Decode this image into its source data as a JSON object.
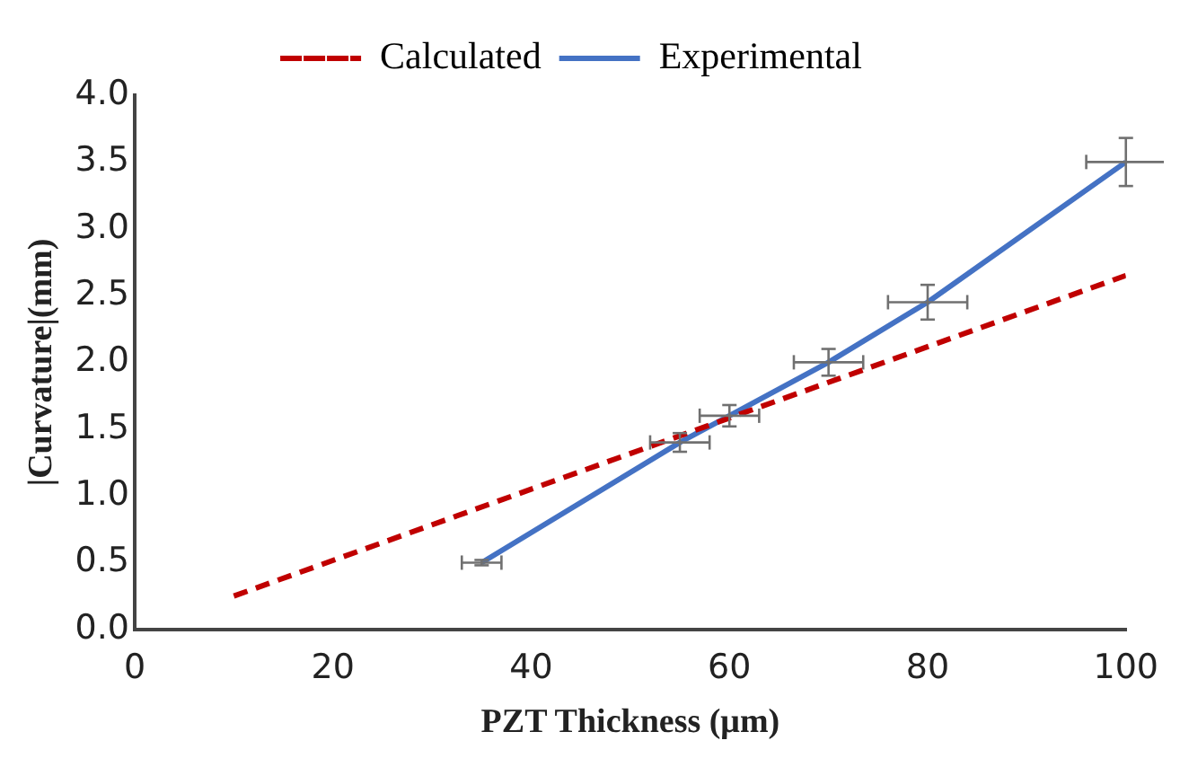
{
  "chart_data": {
    "type": "line",
    "xlabel": "PZT Thickness (μm)",
    "ylabel": "|Curvature|(mm)",
    "xlim": [
      0,
      100
    ],
    "xticks": [
      0,
      20,
      40,
      60,
      80,
      100
    ],
    "ylim": [
      0,
      4
    ],
    "yticks": [
      {
        "value": 0,
        "label": "0.0"
      },
      {
        "value": 0.5,
        "label": "0.5"
      },
      {
        "value": 1,
        "label": "1.0"
      },
      {
        "value": 1.5,
        "label": "1.5"
      },
      {
        "value": 2,
        "label": "2.0"
      },
      {
        "value": 2.5,
        "label": "2.5"
      },
      {
        "value": 3,
        "label": "3.0"
      },
      {
        "value": 3.5,
        "label": "3.5"
      },
      {
        "value": 4,
        "label": "4.0"
      }
    ],
    "grid": false,
    "legend": "top",
    "marker": "none",
    "series": [
      {
        "name": "Calculated",
        "color": "#c00000",
        "line_style": "dashed",
        "x": [
          10,
          100
        ],
        "values": [
          0.25,
          2.65
        ]
      },
      {
        "name": "Experimental",
        "color": "#4472c4",
        "line_style": "solid",
        "x": [
          35,
          55,
          60,
          70,
          80,
          100
        ],
        "values": [
          0.5,
          1.4,
          1.6,
          2.0,
          2.45,
          3.5
        ],
        "errors": [
          0.02,
          0.07,
          0.08,
          0.1,
          0.13,
          0.18
        ],
        "xerrors": [
          2,
          3,
          3,
          3.5,
          4,
          4
        ]
      }
    ]
  }
}
